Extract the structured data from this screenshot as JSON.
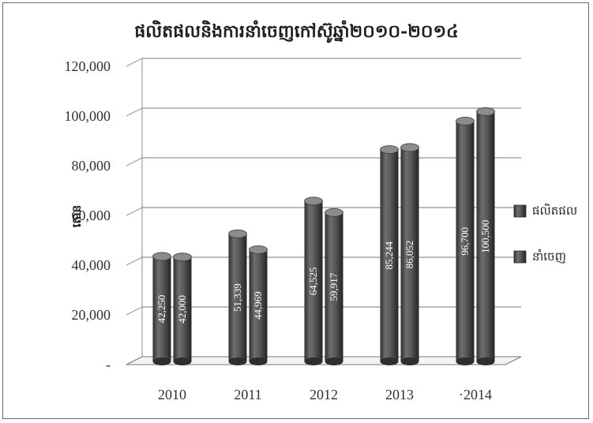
{
  "chart_data": {
    "type": "bar",
    "title": "ផលិតផលនិងការនាំចេញកៅស៊ូឆ្នាំ២០១០-២០១៤",
    "ylabel": "តោន",
    "xlabel": "",
    "categories": [
      "2010",
      "2011",
      "2012",
      "2013",
      "·2014"
    ],
    "series": [
      {
        "name": "ផលិតផល",
        "values": [
          42250,
          51339,
          64525,
          85244,
          96700
        ],
        "labels": [
          "42,250",
          "51,339",
          "64,525",
          "85,244",
          "96,700"
        ]
      },
      {
        "name": "នាំចេញ",
        "values": [
          42000,
          44969,
          59917,
          86052,
          100500
        ],
        "labels": [
          "42,000",
          "44,969",
          "59,917",
          "86,052",
          "100,500"
        ]
      }
    ],
    "yticks": [
      "-",
      "20,000",
      "40,000",
      "60,000",
      "80,000",
      "100,000",
      "120,000"
    ],
    "ylim": [
      0,
      120000
    ],
    "grid": true,
    "legend": "right",
    "bar_color": "#555555"
  }
}
